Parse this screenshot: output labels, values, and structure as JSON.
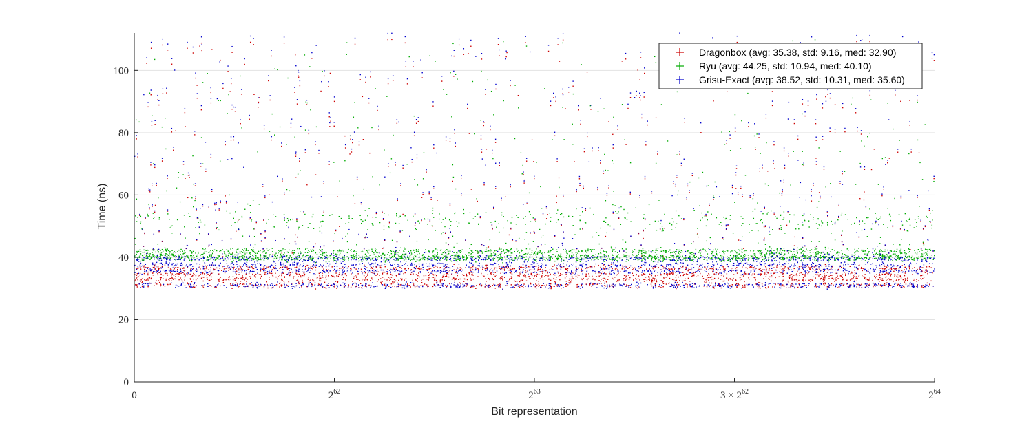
{
  "chart_data": {
    "type": "scatter",
    "title": "",
    "xlabel": "Bit representation",
    "ylabel": "Time (ns)",
    "xlim": [
      0,
      4
    ],
    "ylim": [
      0,
      112
    ],
    "x_unit": "2^62",
    "x_ticks": [
      {
        "value": 0,
        "label": "0"
      },
      {
        "value": 1,
        "label": "2",
        "sup": "62"
      },
      {
        "value": 2,
        "label": "2",
        "sup": "63"
      },
      {
        "value": 3,
        "label": "3 × 2",
        "sup": "62"
      },
      {
        "value": 4,
        "label": "2",
        "sup": "64"
      }
    ],
    "y_ticks": [
      0,
      20,
      40,
      60,
      80,
      100
    ],
    "grid": "horizontal",
    "legend_position": "top-right",
    "series": [
      {
        "name": "Dragonbox (avg: 35.38, std: 9.16, med: 32.90)",
        "color": "#cc0000",
        "bands": [
          [
            31,
            0.2
          ],
          [
            32.9,
            0.25
          ],
          [
            34.5,
            0.2
          ],
          [
            36.5,
            0.15
          ]
        ],
        "scatter_range": [
          40,
          110
        ]
      },
      {
        "name": "Ryu (avg: 44.25, std: 10.94, med: 40.10)",
        "color": "#00aa00",
        "bands": [
          [
            39.5,
            0.35
          ],
          [
            40.5,
            0.3
          ],
          [
            42,
            0.15
          ]
        ],
        "scatter_range": [
          44,
          110
        ]
      },
      {
        "name": "Grisu-Exact (avg: 38.52, std: 10.31, med: 35.60)",
        "color": "#0000cc",
        "bands": [
          [
            31,
            0.15
          ],
          [
            35.6,
            0.3
          ],
          [
            37.5,
            0.2
          ],
          [
            39.5,
            0.2
          ]
        ],
        "scatter_range": [
          40,
          112
        ]
      }
    ]
  }
}
